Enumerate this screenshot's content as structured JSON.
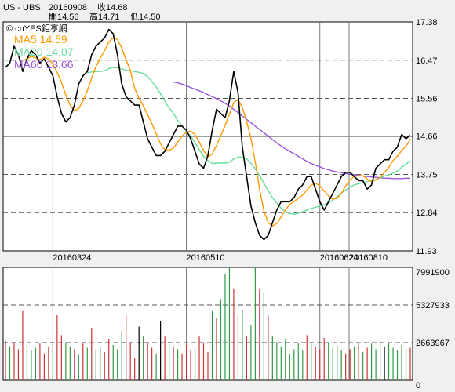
{
  "header": {
    "symbol": "US - UBS",
    "date": "20160908",
    "close_label": "收14.68",
    "open_label": "開14.56",
    "high_label": "高14.71",
    "low_label": "低14.50"
  },
  "legend": {
    "source": "© cnYES鉅亨網",
    "ma5": "MA5 14.59",
    "ma20": "MA20 14.07",
    "ma60": "MA60 13.66"
  },
  "colors": {
    "price": "#000000",
    "ma5": "#ff9900",
    "ma20": "#66dd99",
    "ma60": "#9955dd",
    "vol_up": "#cc3333",
    "vol_down": "#339944",
    "vol_flat": "#000000",
    "background": "#ffffff",
    "page": "#f0f0f0",
    "dash": "#555555"
  },
  "chart_data": [
    {
      "type": "line",
      "title": "",
      "xlabel": "",
      "ylabel": "",
      "ylim": [
        11.93,
        17.38
      ],
      "y_ticks": [
        "17.38",
        "16.47",
        "15.56",
        "14.66",
        "13.75",
        "12.84",
        "11.93"
      ],
      "x_ticks": [
        "20160324",
        "20160510",
        "20160624",
        "20160810"
      ],
      "grid": true,
      "reference_line": 14.66,
      "series": [
        {
          "name": "close",
          "key": "close",
          "values": [
            16.3,
            16.4,
            16.8,
            16.6,
            16.2,
            16.5,
            16.7,
            16.6,
            16.4,
            16.5,
            16.3,
            16.1,
            15.6,
            15.2,
            15.0,
            15.1,
            15.4,
            15.9,
            16.1,
            16.2,
            16.6,
            16.8,
            16.9,
            17.0,
            17.2,
            17.1,
            16.6,
            15.9,
            15.6,
            15.5,
            15.4,
            15.4,
            15.0,
            14.6,
            14.4,
            14.2,
            14.2,
            14.3,
            14.5,
            14.7,
            14.9,
            14.9,
            14.8,
            14.6,
            14.3,
            14.0,
            13.9,
            14.2,
            14.8,
            15.3,
            15.2,
            15.1,
            15.5,
            16.2,
            15.7,
            14.4,
            13.7,
            13.0,
            12.6,
            12.3,
            12.2,
            12.3,
            12.6,
            12.9,
            13.1,
            13.1,
            13.1,
            13.2,
            13.4,
            13.5,
            13.7,
            13.7,
            13.4,
            13.1,
            12.9,
            13.1,
            13.3,
            13.5,
            13.7,
            13.8,
            13.8,
            13.7,
            13.6,
            13.6,
            13.4,
            13.5,
            13.9,
            14.0,
            14.1,
            14.1,
            14.3,
            14.4,
            14.7,
            14.6,
            14.68
          ]
        },
        {
          "name": "MA5 14.59",
          "key": "ma5",
          "values": [
            null,
            null,
            null,
            null,
            16.46,
            16.5,
            16.56,
            16.52,
            16.48,
            16.54,
            16.5,
            16.38,
            16.18,
            15.94,
            15.64,
            15.4,
            15.26,
            15.32,
            15.5,
            15.74,
            16.04,
            16.32,
            16.52,
            16.7,
            16.9,
            17.0,
            16.96,
            16.76,
            16.48,
            16.22,
            15.8,
            15.56,
            15.38,
            15.18,
            14.96,
            14.72,
            14.48,
            14.34,
            14.32,
            14.38,
            14.52,
            14.66,
            14.76,
            14.78,
            14.7,
            14.52,
            14.32,
            14.16,
            14.24,
            14.44,
            14.68,
            14.92,
            15.18,
            15.46,
            15.54,
            15.34,
            15.02,
            14.6,
            14.04,
            13.4,
            12.88,
            12.6,
            12.52,
            12.58,
            12.74,
            12.9,
            13.04,
            13.1,
            13.18,
            13.26,
            13.38,
            13.5,
            13.54,
            13.48,
            13.36,
            13.24,
            13.16,
            13.18,
            13.3,
            13.48,
            13.62,
            13.7,
            13.72,
            13.72,
            13.64,
            13.58,
            13.62,
            13.68,
            13.8,
            13.92,
            14.08,
            14.18,
            14.32,
            14.42,
            14.59
          ]
        },
        {
          "name": "MA20 14.07",
          "key": "ma20",
          "values": [
            null,
            null,
            null,
            null,
            null,
            null,
            null,
            null,
            null,
            null,
            null,
            null,
            null,
            null,
            null,
            null,
            null,
            null,
            null,
            16.17,
            16.19,
            16.2,
            16.2,
            16.22,
            16.27,
            16.3,
            16.29,
            16.26,
            16.23,
            16.22,
            16.2,
            16.18,
            16.15,
            16.08,
            15.96,
            15.83,
            15.67,
            15.49,
            15.33,
            15.2,
            15.04,
            14.9,
            14.78,
            14.66,
            14.5,
            14.34,
            14.18,
            14.08,
            14.01,
            14.02,
            14.02,
            14.02,
            14.04,
            14.12,
            14.16,
            14.16,
            14.12,
            14.02,
            13.88,
            13.72,
            13.54,
            13.36,
            13.2,
            13.07,
            12.95,
            12.86,
            12.82,
            12.8,
            12.83,
            12.86,
            12.9,
            12.94,
            12.97,
            13.0,
            13.03,
            13.07,
            13.14,
            13.22,
            13.31,
            13.38,
            13.45,
            13.5,
            13.53,
            13.55,
            13.58,
            13.6,
            13.63,
            13.67,
            13.71,
            13.74,
            13.78,
            13.83,
            13.92,
            13.99,
            14.07
          ]
        },
        {
          "name": "MA60 13.66",
          "key": "ma60",
          "values": [
            null,
            null,
            null,
            null,
            null,
            null,
            null,
            null,
            null,
            null,
            null,
            null,
            null,
            null,
            null,
            null,
            null,
            null,
            null,
            null,
            null,
            null,
            null,
            null,
            null,
            null,
            null,
            null,
            null,
            null,
            null,
            null,
            null,
            null,
            null,
            null,
            null,
            null,
            null,
            15.95,
            15.93,
            15.9,
            15.86,
            15.82,
            15.78,
            15.74,
            15.7,
            15.65,
            15.6,
            15.55,
            15.5,
            15.44,
            15.38,
            15.3,
            15.22,
            15.14,
            15.06,
            14.98,
            14.9,
            14.82,
            14.74,
            14.66,
            14.58,
            14.5,
            14.43,
            14.36,
            14.3,
            14.24,
            14.18,
            14.12,
            14.06,
            14.01,
            13.97,
            13.93,
            13.89,
            13.86,
            13.83,
            13.81,
            13.79,
            13.77,
            13.76,
            13.74,
            13.73,
            13.71,
            13.7,
            13.69,
            13.68,
            13.67,
            13.66,
            13.66,
            13.65,
            13.65,
            13.65,
            13.66,
            13.66
          ]
        }
      ]
    },
    {
      "type": "bar",
      "title": "",
      "xlabel": "",
      "ylabel": "",
      "ylim": [
        0,
        7991900
      ],
      "y_ticks": [
        "7991900",
        "5327933",
        "2663967",
        "0"
      ],
      "values": [
        2800000,
        2400000,
        2700000,
        2200000,
        4900000,
        2500000,
        2100000,
        2300000,
        2600000,
        1900000,
        2400000,
        2700000,
        4600000,
        3200000,
        2700000,
        2400000,
        2200000,
        1800000,
        2600000,
        2300000,
        3700000,
        2100000,
        2400000,
        2000000,
        2900000,
        2500000,
        2200000,
        3500000,
        4600000,
        2700000,
        1600000,
        3800000,
        3100000,
        2700000,
        2300000,
        1900000,
        4200000,
        3100000,
        2800000,
        2400000,
        2200000,
        1900000,
        2500000,
        2100000,
        2400000,
        3100000,
        2600000,
        2000000,
        4900000,
        4400000,
        5700000,
        7500000,
        7991900,
        6500000,
        4600000,
        5000000,
        3100000,
        3900000,
        7991900,
        6500000,
        6200000,
        4600000,
        3100000,
        2700000,
        2400000,
        2900000,
        1900000,
        2200000,
        2600000,
        2100000,
        3200000,
        2700000,
        2400000,
        2200000,
        3000000,
        2700000,
        2300000,
        2500000,
        2100000,
        1900000,
        2200000,
        2400000,
        2600000,
        2000000,
        2300000,
        2600000,
        2200000,
        2800000,
        2400000,
        2600000,
        2300000,
        2100000,
        2500000,
        2200000,
        2300000
      ],
      "directions": [
        "u",
        "d",
        "u",
        "u",
        "u",
        "d",
        "d",
        "d",
        "u",
        "u",
        "u",
        "d",
        "u",
        "u",
        "d",
        "d",
        "u",
        "d",
        "u",
        "d",
        "u",
        "d",
        "d",
        "u",
        "u",
        "d",
        "d",
        "d",
        "u",
        "u",
        "u",
        "f",
        "d",
        "u",
        "u",
        "d",
        "f",
        "u",
        "d",
        "u",
        "d",
        "u",
        "u",
        "u",
        "d",
        "u",
        "u",
        "u",
        "d",
        "u",
        "d",
        "d",
        "d",
        "u",
        "d",
        "d",
        "u",
        "d",
        "d",
        "u",
        "d",
        "u",
        "d",
        "d",
        "d",
        "d",
        "d",
        "d",
        "d",
        "d",
        "u",
        "d",
        "u",
        "u",
        "u",
        "d",
        "d",
        "d",
        "d",
        "u",
        "u",
        "d",
        "u",
        "d",
        "u",
        "d",
        "d",
        "d",
        "f",
        "d",
        "d",
        "d",
        "d",
        "d",
        "u"
      ]
    }
  ]
}
